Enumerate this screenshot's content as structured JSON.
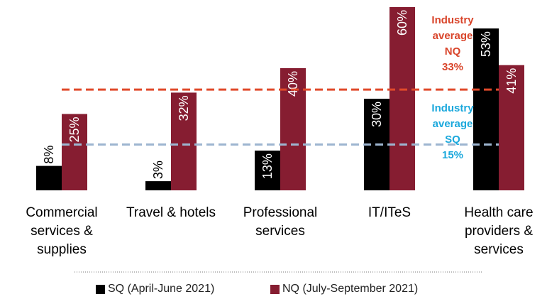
{
  "chart_data": {
    "type": "bar",
    "categories": [
      "Commercial services & supplies",
      "Travel & hotels",
      "Professional services",
      "IT/ITeS",
      "Health care providers & services"
    ],
    "series": [
      {
        "name": "SQ (April-June 2021)",
        "color": "#000000",
        "label_color": "#ffffff",
        "values": [
          8,
          3,
          13,
          30,
          53
        ],
        "value_labels": [
          "8%",
          "3%",
          "13%",
          "30%",
          "53%"
        ]
      },
      {
        "name": "NQ (July-September 2021)",
        "color": "#861d31",
        "label_color": "#ffffff",
        "values": [
          25,
          32,
          40,
          60,
          41
        ],
        "value_labels": [
          "25%",
          "32%",
          "40%",
          "60%",
          "41%"
        ]
      }
    ],
    "reference_lines": [
      {
        "label": "Industry average NQ",
        "value": 33,
        "value_label": "33%",
        "color": "#e0492a",
        "text_color": "#d9452b"
      },
      {
        "label": "Industry average SQ",
        "value": 15,
        "value_label": "15%",
        "color": "#9db5d0",
        "text_color": "#1ba8dc"
      }
    ]
  }
}
